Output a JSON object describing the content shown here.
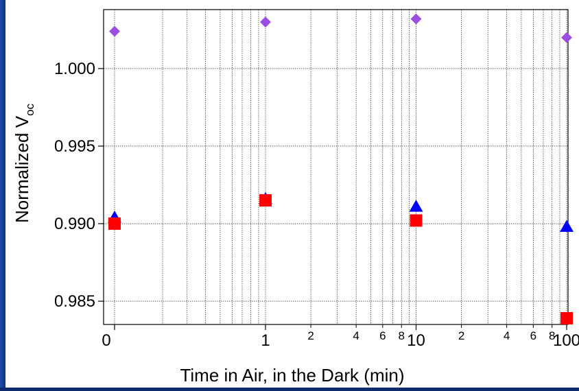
{
  "chart_data": {
    "type": "scatter",
    "xlabel": "Time in Air, in the Dark (min)",
    "ylabel_main": "Normalized V",
    "ylabel_sub": "oc",
    "x_scale": "log (with 0 shown at left)",
    "x_major_ticks": [
      "0",
      "1",
      "10",
      "100"
    ],
    "x_minor_ticks": [
      "2",
      "4",
      "6",
      "8",
      "2",
      "4",
      "6",
      "8"
    ],
    "y_ticks": [
      "0.985",
      "0.990",
      "0.995",
      "1.000"
    ],
    "ylim": [
      0.9835,
      1.0038
    ],
    "grid": true,
    "series": [
      {
        "marker": "diamond",
        "color": "#9b4fe0",
        "points": [
          {
            "x": 0,
            "y": 1.0024
          },
          {
            "x": 1,
            "y": 1.003
          },
          {
            "x": 10,
            "y": 1.0032
          },
          {
            "x": 100,
            "y": 1.002
          }
        ]
      },
      {
        "marker": "triangle",
        "color": "#0000ff",
        "points": [
          {
            "x": 0,
            "y": 0.9904
          },
          {
            "x": 1,
            "y": 0.9916
          },
          {
            "x": 10,
            "y": 0.9911
          },
          {
            "x": 100,
            "y": 0.9898
          }
        ]
      },
      {
        "marker": "square",
        "color": "#ff0000",
        "points": [
          {
            "x": 0,
            "y": 0.99
          },
          {
            "x": 1,
            "y": 0.9915
          },
          {
            "x": 10,
            "y": 0.9902
          },
          {
            "x": 100,
            "y": 0.9839
          }
        ]
      }
    ]
  }
}
